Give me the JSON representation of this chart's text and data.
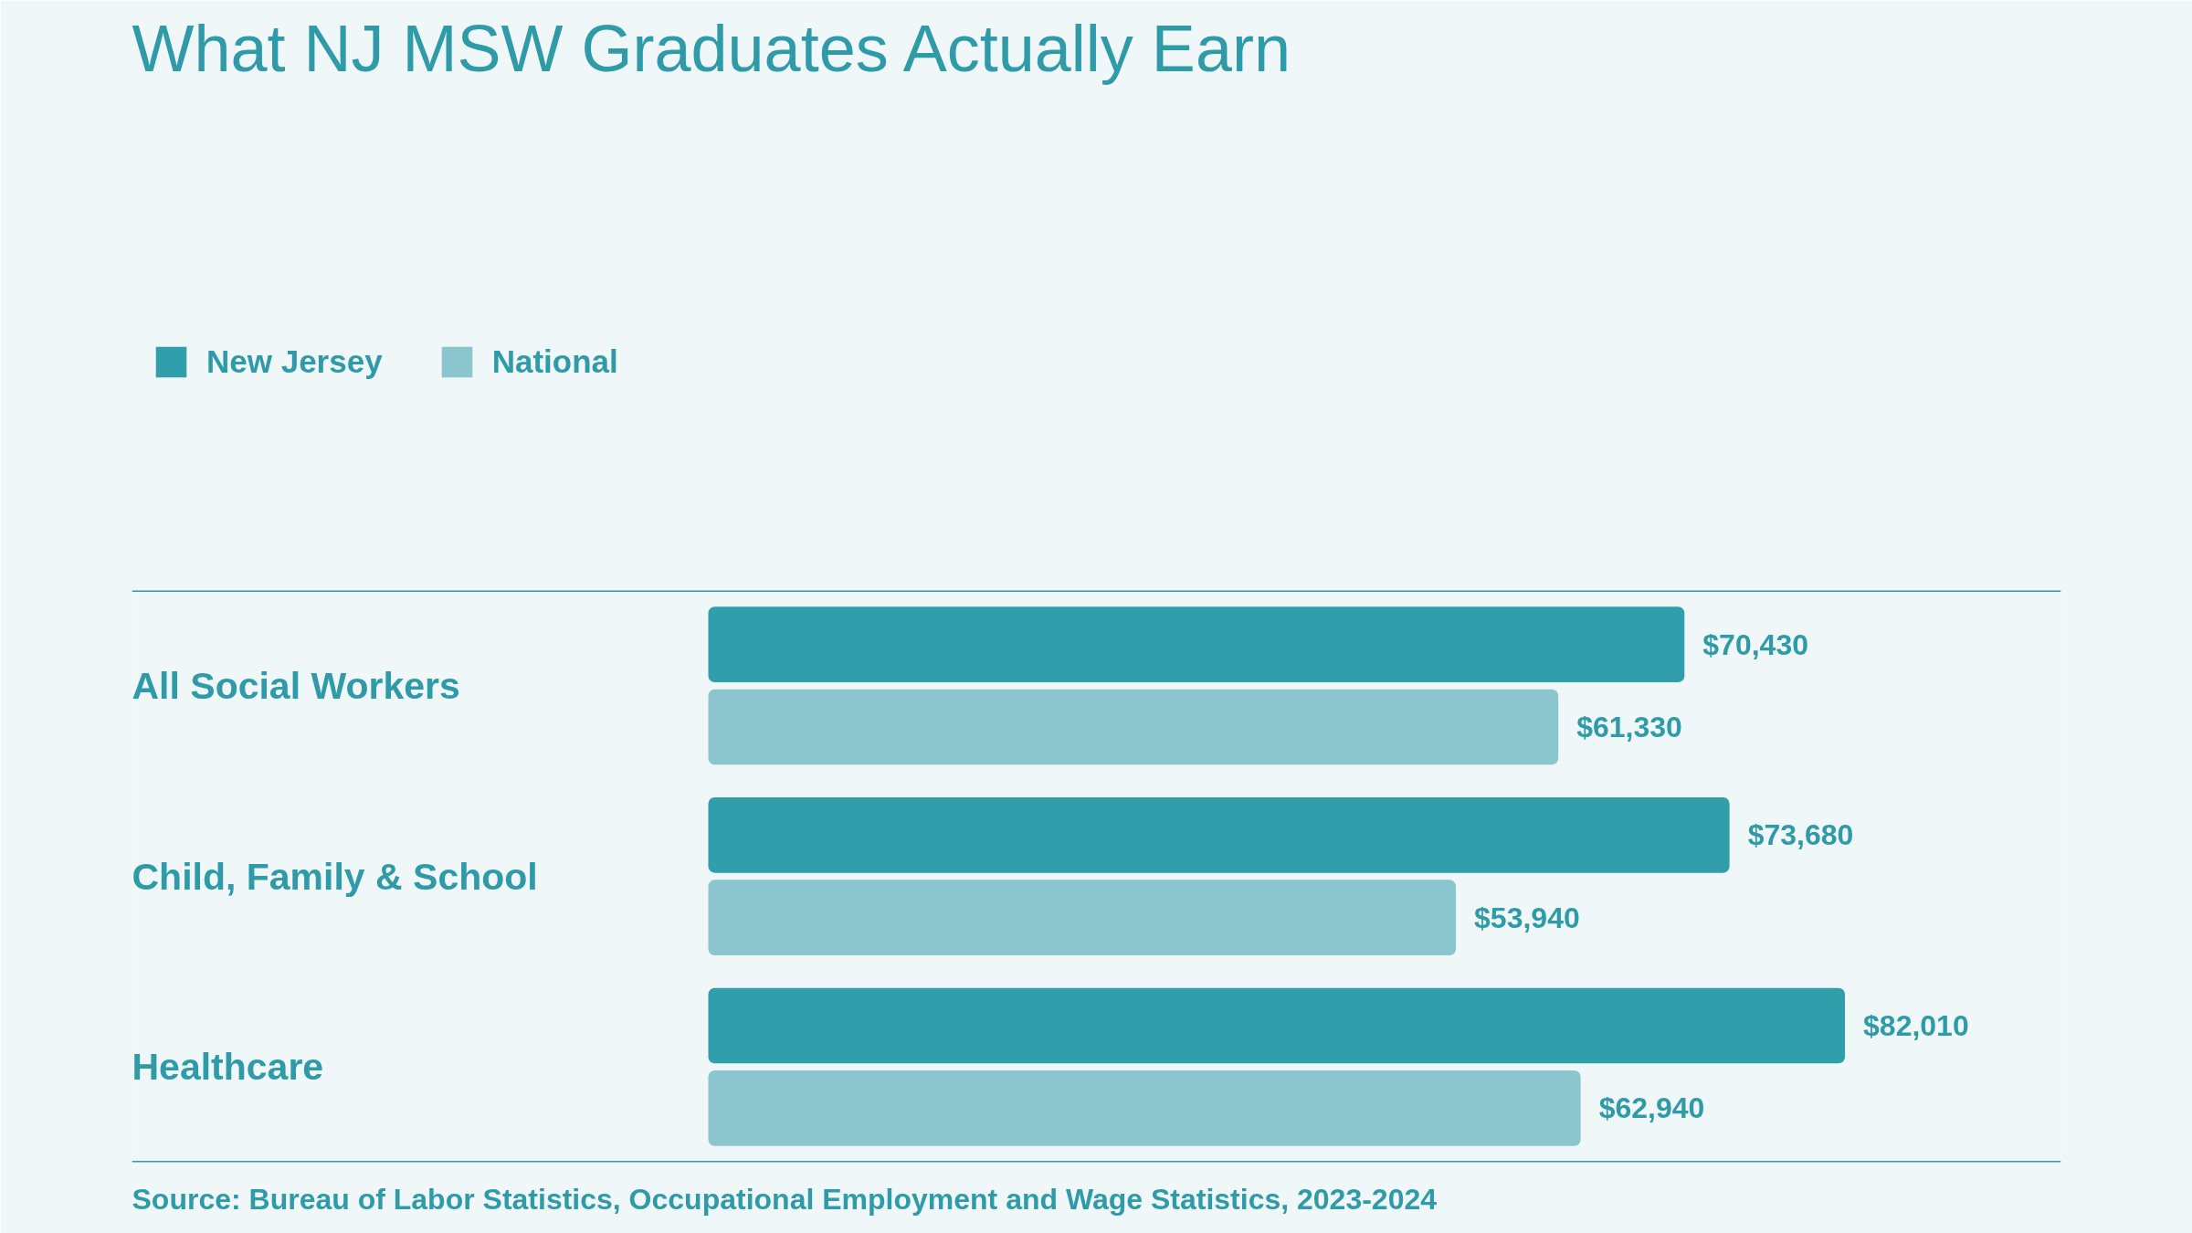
{
  "chart_data": {
    "type": "bar",
    "orientation": "horizontal",
    "title": "What NJ MSW Graduates Actually Earn",
    "categories": [
      "All Social Workers",
      "Child, Family & School",
      "Healthcare"
    ],
    "series": [
      {
        "name": "New Jersey",
        "color": "#319eab",
        "values": [
          70430,
          73680,
          82010
        ],
        "value_labels": [
          "$70,430",
          "$73,680",
          "$82,010"
        ]
      },
      {
        "name": "National",
        "color": "#8bc6cf",
        "values": [
          61330,
          53940,
          62940
        ],
        "value_labels": [
          "$61,330",
          "$53,940",
          "$62,940"
        ]
      }
    ],
    "legend": "top left",
    "annotations": [
      "Source: Bureau of Labor Statistics, Occupational Employment and Wage Statistics, 2023-2024"
    ]
  }
}
